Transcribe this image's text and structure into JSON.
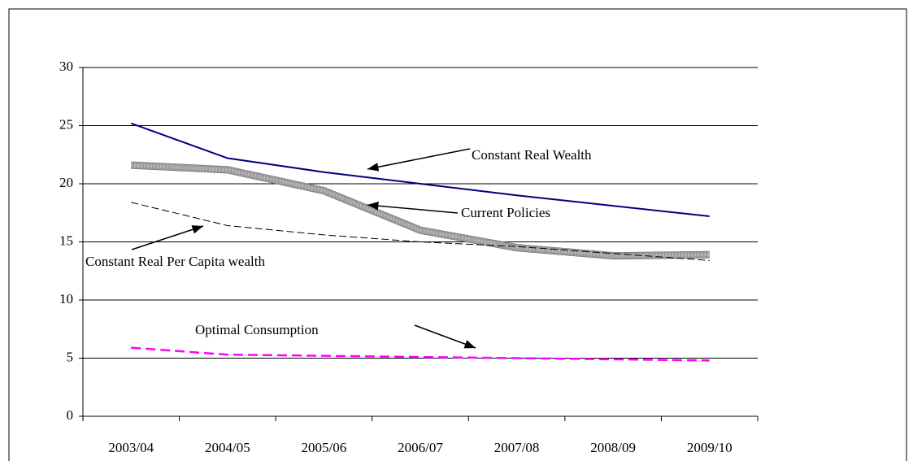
{
  "chart_data": {
    "type": "line",
    "categories": [
      "2003/04",
      "2004/05",
      "2005/06",
      "2006/07",
      "2007/08",
      "2008/09",
      "2009/10"
    ],
    "series": [
      {
        "name": "Constant Real Wealth",
        "color": "#000080",
        "values": [
          25.2,
          22.2,
          21.0,
          20.0,
          19.0,
          18.1,
          17.2
        ]
      },
      {
        "name": "Current Policies",
        "color": "#999999",
        "values": [
          21.6,
          21.2,
          19.4,
          16.0,
          14.5,
          13.8,
          13.9
        ]
      },
      {
        "name": "Constant Real Per Capita wealth",
        "color": "#000000",
        "values": [
          18.4,
          16.4,
          15.6,
          15.0,
          14.6,
          14.0,
          13.4
        ]
      },
      {
        "name": "Optimal Consumption",
        "color": "#ff00ff",
        "values": [
          5.9,
          5.3,
          5.2,
          5.1,
          5.0,
          4.9,
          4.8
        ]
      }
    ],
    "ylim": [
      0,
      30
    ],
    "yticks": [
      0,
      5,
      10,
      15,
      20,
      25,
      30
    ],
    "grid": true
  }
}
